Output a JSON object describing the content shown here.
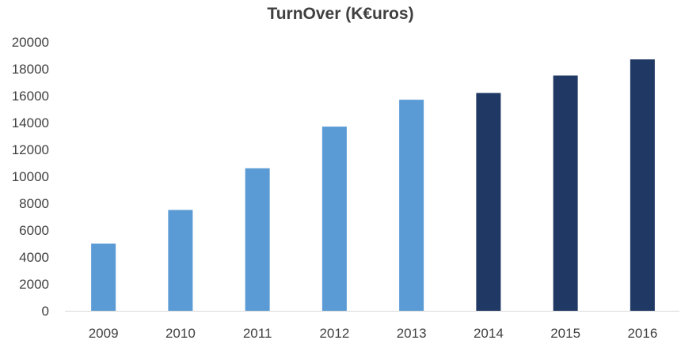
{
  "chart_data": {
    "type": "bar",
    "title": "TurnOver (K€uros)",
    "xlabel": "",
    "ylabel": "",
    "categories": [
      "2009",
      "2010",
      "2011",
      "2012",
      "2013",
      "2014",
      "2015",
      "2016"
    ],
    "values": [
      5000,
      7500,
      10600,
      13700,
      15700,
      16200,
      17500,
      18700
    ],
    "bar_colors": [
      "#5b9bd5",
      "#5b9bd5",
      "#5b9bd5",
      "#5b9bd5",
      "#5b9bd5",
      "#1f3864",
      "#1f3864",
      "#1f3864"
    ],
    "ylim": [
      0,
      20000
    ],
    "yticks": [
      "0",
      "2000",
      "4000",
      "6000",
      "8000",
      "10000",
      "12000",
      "14000",
      "16000",
      "18000",
      "20000"
    ],
    "grid": false,
    "legend": "none"
  }
}
